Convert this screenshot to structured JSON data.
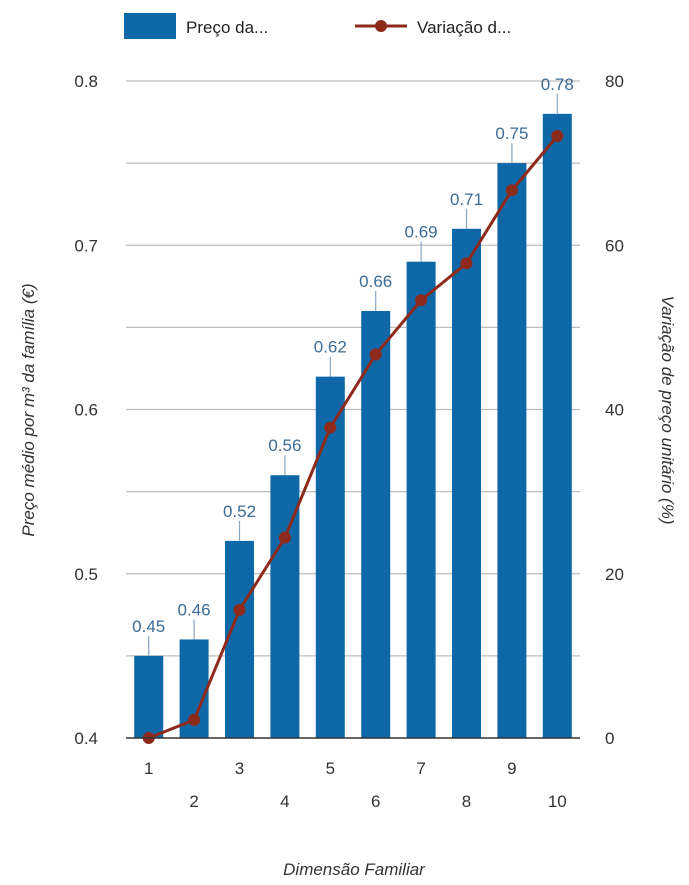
{
  "chart_data": {
    "type": "bar+line",
    "categories": [
      "1",
      "2",
      "3",
      "4",
      "5",
      "6",
      "7",
      "8",
      "9",
      "10"
    ],
    "series": [
      {
        "name": "Preço da...",
        "type": "bar",
        "axis": "left",
        "values": [
          0.45,
          0.46,
          0.52,
          0.56,
          0.62,
          0.66,
          0.69,
          0.71,
          0.75,
          0.78
        ],
        "labels": [
          "0.45",
          "0.46",
          "0.52",
          "0.56",
          "0.62",
          "0.66",
          "0.69",
          "0.71",
          "0.75",
          "0.78"
        ]
      },
      {
        "name": "Variação d...",
        "type": "line",
        "axis": "right",
        "values": [
          0,
          2.2,
          15.6,
          24.4,
          37.8,
          46.7,
          53.3,
          57.8,
          66.7,
          73.3
        ]
      }
    ],
    "xlabel": "Dimensão Familiar",
    "ylabel_left": "Preço médio por m³ da família (€)",
    "ylabel_right": "Variação de preço unitário (%)",
    "ylim_left": [
      0.4,
      0.8
    ],
    "ylim_right": [
      0,
      80
    ],
    "yticks_left": [
      "0.4",
      "0.5",
      "0.6",
      "0.7",
      "0.8"
    ],
    "yticks_right": [
      "0",
      "20",
      "40",
      "60",
      "80"
    ],
    "grid": true,
    "legend_position": "top",
    "colors": {
      "bar": "#0e67a6",
      "line": "#8e2a1c",
      "grid": "#bdbdbd",
      "axis": "#333333"
    }
  }
}
